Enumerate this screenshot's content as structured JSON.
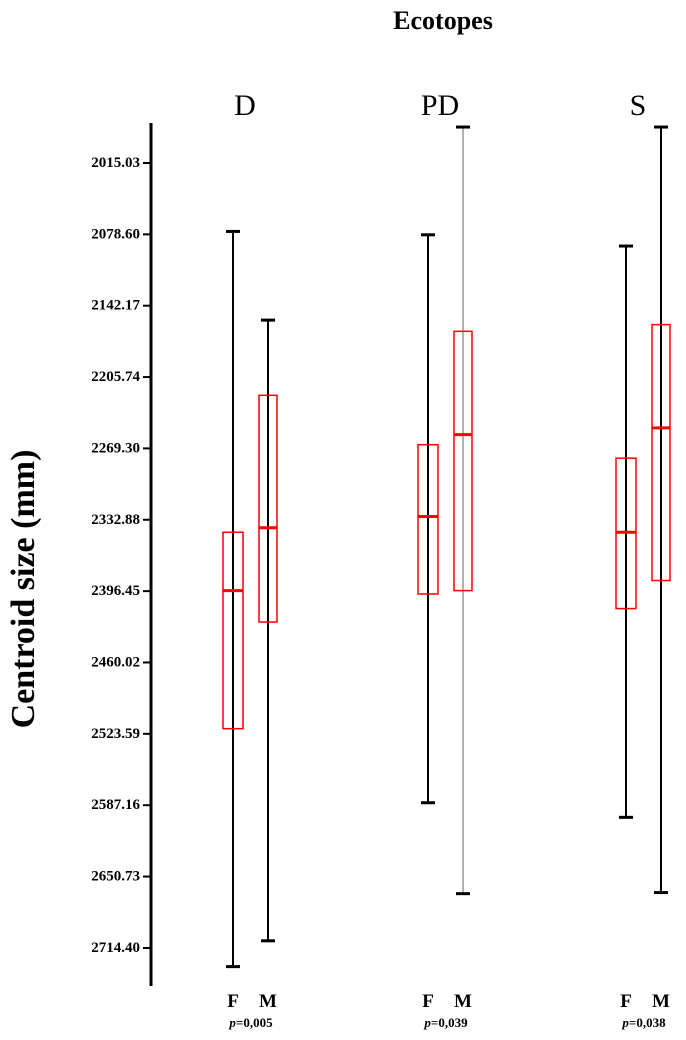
{
  "chart_data": {
    "type": "boxplot",
    "title": "Ecotopes",
    "ylabel": "Centroid size (mm)",
    "y_axis": {
      "ticks": [
        "2015.03",
        "2078.60",
        "2142.17",
        "2205.74",
        "2269.30",
        "2332.88",
        "2396.45",
        "2460.02",
        "2523.59",
        "2587.16",
        "2650.73",
        "2714.40"
      ],
      "ylim": [
        1980,
        2750
      ],
      "inverted": true
    },
    "groups": [
      {
        "name": "D",
        "p_label": "p",
        "p_value": "=0,005",
        "boxes": [
          {
            "sex": "F",
            "whisker_low": 2076,
            "q1": 2344,
            "median": 2396,
            "q3": 2519,
            "whisker_high": 2731
          },
          {
            "sex": "M",
            "whisker_low": 2155,
            "q1": 2222,
            "median": 2340,
            "q3": 2424,
            "whisker_high": 2708
          }
        ]
      },
      {
        "name": "PD",
        "p_label": "p",
        "p_value": "=0,039",
        "boxes": [
          {
            "sex": "F",
            "whisker_low": 2079,
            "q1": 2266,
            "median": 2330,
            "q3": 2399,
            "whisker_high": 2585
          },
          {
            "sex": "M",
            "whisker_low": 1983,
            "q1": 2165,
            "median": 2257,
            "q3": 2396,
            "whisker_high": 2666
          }
        ]
      },
      {
        "name": "S",
        "p_label": "p",
        "p_value": "=0,038",
        "boxes": [
          {
            "sex": "F",
            "whisker_low": 2089,
            "q1": 2278,
            "median": 2344,
            "q3": 2412,
            "whisker_high": 2598
          },
          {
            "sex": "M",
            "whisker_low": 1983,
            "q1": 2159,
            "median": 2251,
            "q3": 2387,
            "whisker_high": 2665
          }
        ]
      }
    ],
    "colors": {
      "box": "#ff0000",
      "median": "#ff0000",
      "whisker": "#000000",
      "whisker_light": "#999999"
    }
  }
}
